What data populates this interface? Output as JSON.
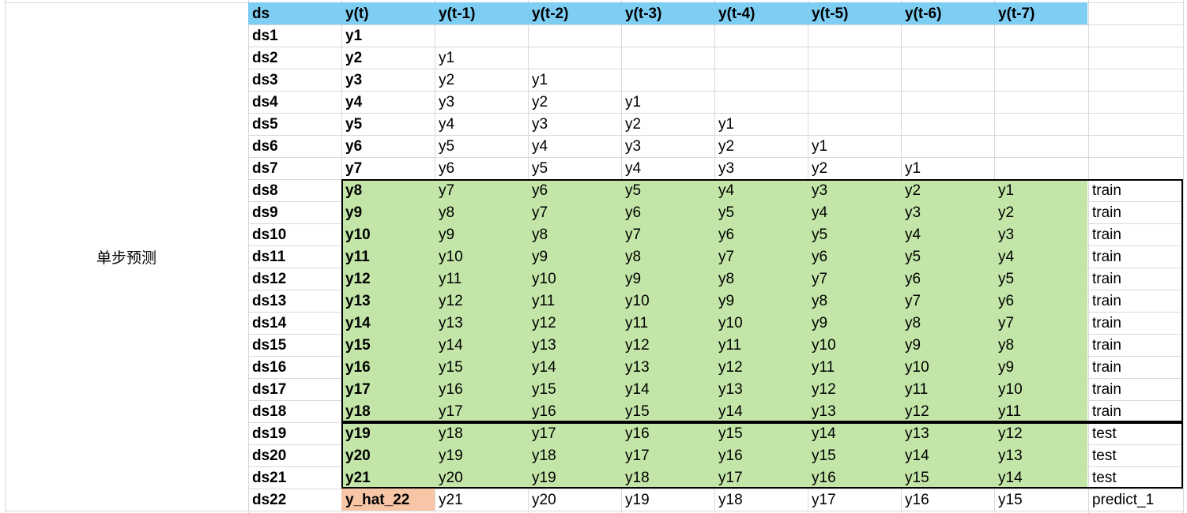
{
  "merged_label": "单步预测",
  "headers": [
    "ds",
    "y(t)",
    "y(t-1)",
    "y(t-2)",
    "y(t-3)",
    "y(t-4)",
    "y(t-5)",
    "y(t-6)",
    "y(t-7)"
  ],
  "rows": [
    {
      "ds": "ds1",
      "cells": [
        "y1",
        "",
        "",
        "",
        "",
        "",
        "",
        ""
      ],
      "label": "",
      "group": "none"
    },
    {
      "ds": "ds2",
      "cells": [
        "y2",
        "y1",
        "",
        "",
        "",
        "",
        "",
        ""
      ],
      "label": "",
      "group": "none"
    },
    {
      "ds": "ds3",
      "cells": [
        "y3",
        "y2",
        "y1",
        "",
        "",
        "",
        "",
        ""
      ],
      "label": "",
      "group": "none"
    },
    {
      "ds": "ds4",
      "cells": [
        "y4",
        "y3",
        "y2",
        "y1",
        "",
        "",
        "",
        ""
      ],
      "label": "",
      "group": "none"
    },
    {
      "ds": "ds5",
      "cells": [
        "y5",
        "y4",
        "y3",
        "y2",
        "y1",
        "",
        "",
        ""
      ],
      "label": "",
      "group": "none"
    },
    {
      "ds": "ds6",
      "cells": [
        "y6",
        "y5",
        "y4",
        "y3",
        "y2",
        "y1",
        "",
        ""
      ],
      "label": "",
      "group": "none"
    },
    {
      "ds": "ds7",
      "cells": [
        "y7",
        "y6",
        "y5",
        "y4",
        "y3",
        "y2",
        "y1",
        ""
      ],
      "label": "",
      "group": "none"
    },
    {
      "ds": "ds8",
      "cells": [
        "y8",
        "y7",
        "y6",
        "y5",
        "y4",
        "y3",
        "y2",
        "y1"
      ],
      "label": "train",
      "group": "train"
    },
    {
      "ds": "ds9",
      "cells": [
        "y9",
        "y8",
        "y7",
        "y6",
        "y5",
        "y4",
        "y3",
        "y2"
      ],
      "label": "train",
      "group": "train"
    },
    {
      "ds": "ds10",
      "cells": [
        "y10",
        "y9",
        "y8",
        "y7",
        "y6",
        "y5",
        "y4",
        "y3"
      ],
      "label": "train",
      "group": "train"
    },
    {
      "ds": "ds11",
      "cells": [
        "y11",
        "y10",
        "y9",
        "y8",
        "y7",
        "y6",
        "y5",
        "y4"
      ],
      "label": "train",
      "group": "train"
    },
    {
      "ds": "ds12",
      "cells": [
        "y12",
        "y11",
        "y10",
        "y9",
        "y8",
        "y7",
        "y6",
        "y5"
      ],
      "label": "train",
      "group": "train"
    },
    {
      "ds": "ds13",
      "cells": [
        "y13",
        "y12",
        "y11",
        "y10",
        "y9",
        "y8",
        "y7",
        "y6"
      ],
      "label": "train",
      "group": "train"
    },
    {
      "ds": "ds14",
      "cells": [
        "y14",
        "y13",
        "y12",
        "y11",
        "y10",
        "y9",
        "y8",
        "y7"
      ],
      "label": "train",
      "group": "train"
    },
    {
      "ds": "ds15",
      "cells": [
        "y15",
        "y14",
        "y13",
        "y12",
        "y11",
        "y10",
        "y9",
        "y8"
      ],
      "label": "train",
      "group": "train"
    },
    {
      "ds": "ds16",
      "cells": [
        "y16",
        "y15",
        "y14",
        "y13",
        "y12",
        "y11",
        "y10",
        "y9"
      ],
      "label": "train",
      "group": "train"
    },
    {
      "ds": "ds17",
      "cells": [
        "y17",
        "y16",
        "y15",
        "y14",
        "y13",
        "y12",
        "y11",
        "y10"
      ],
      "label": "train",
      "group": "train"
    },
    {
      "ds": "ds18",
      "cells": [
        "y18",
        "y17",
        "y16",
        "y15",
        "y14",
        "y13",
        "y12",
        "y11"
      ],
      "label": "train",
      "group": "train"
    },
    {
      "ds": "ds19",
      "cells": [
        "y19",
        "y18",
        "y17",
        "y16",
        "y15",
        "y14",
        "y13",
        "y12"
      ],
      "label": "test",
      "group": "test"
    },
    {
      "ds": "ds20",
      "cells": [
        "y20",
        "y19",
        "y18",
        "y17",
        "y16",
        "y15",
        "y14",
        "y13"
      ],
      "label": "test",
      "group": "test"
    },
    {
      "ds": "ds21",
      "cells": [
        "y21",
        "y20",
        "y19",
        "y18",
        "y17",
        "y16",
        "y15",
        "y14"
      ],
      "label": "test",
      "group": "test"
    },
    {
      "ds": "ds22",
      "cells": [
        "y_hat_22",
        "y21",
        "y20",
        "y19",
        "y18",
        "y17",
        "y16",
        "y15"
      ],
      "label": "predict_1",
      "group": "predict"
    }
  ],
  "colors": {
    "header": "#7ecef4",
    "train_test": "#c3e6a8",
    "predict": "#f7c6a7",
    "gridline": "#d9d9d9"
  }
}
